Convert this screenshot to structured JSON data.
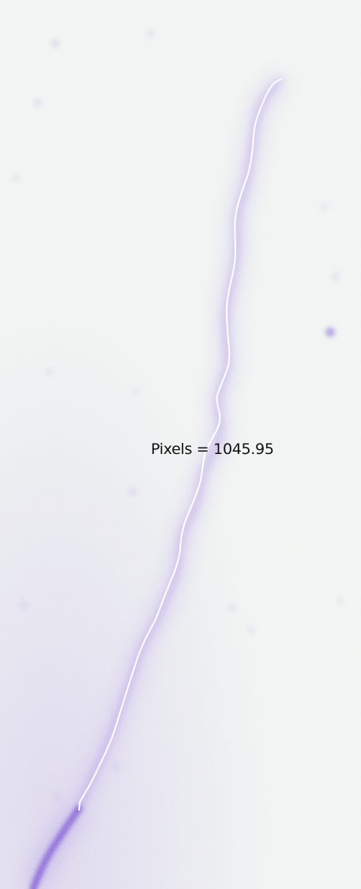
{
  "measurement": {
    "label": "Pixels",
    "separator": " = ",
    "value": "1045.95"
  },
  "colors": {
    "background": "#f1f4f2",
    "stain": "#8a6fd6",
    "stain_dark": "#7a50d0",
    "trace": "#ffffff",
    "label_text": "#111111"
  }
}
